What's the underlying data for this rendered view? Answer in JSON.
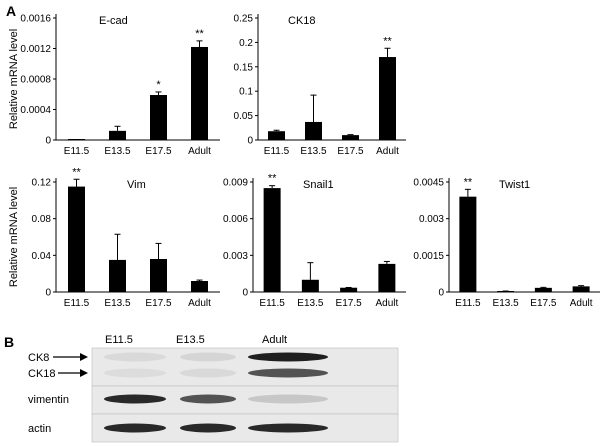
{
  "panel_labels": {
    "a": "A",
    "b": "B"
  },
  "chart_data": [
    {
      "type": "bar",
      "title": "E-cad",
      "ylabel": "Relative mRNA level",
      "categories": [
        "E11.5",
        "E13.5",
        "E17.5",
        "Adult"
      ],
      "values": [
        1e-05,
        0.00012,
        0.00059,
        0.00122
      ],
      "errors": [
        0,
        6e-05,
        4e-05,
        8e-05
      ],
      "significance": [
        "",
        "",
        "*",
        "**"
      ],
      "ylim": [
        0,
        0.0016
      ],
      "yticks": [
        0,
        0.0004,
        0.0008,
        0.0012,
        0.0016
      ],
      "yticklabels": [
        "0",
        "0.0004",
        "0.0008",
        "0.0012",
        "0.0016"
      ]
    },
    {
      "type": "bar",
      "title": "CK18",
      "ylabel": "",
      "categories": [
        "E11.5",
        "E13.5",
        "E17.5",
        "Adult"
      ],
      "values": [
        0.018,
        0.037,
        0.01,
        0.17
      ],
      "errors": [
        0.002,
        0.055,
        0.001,
        0.018
      ],
      "significance": [
        "",
        "",
        "",
        "**"
      ],
      "ylim": [
        0,
        0.25
      ],
      "yticks": [
        0,
        0.05,
        0.1,
        0.15,
        0.2,
        0.25
      ],
      "yticklabels": [
        "0",
        "0.05",
        "0.1",
        "0.15",
        "0.2",
        "0.25"
      ]
    },
    {
      "type": "bar",
      "title": "Vim",
      "ylabel": "Relative mRNA level",
      "categories": [
        "E11.5",
        "E13.5",
        "E17.5",
        "Adult"
      ],
      "values": [
        0.115,
        0.035,
        0.036,
        0.012
      ],
      "errors": [
        0.008,
        0.028,
        0.017,
        0.001
      ],
      "significance": [
        "**",
        "",
        "",
        ""
      ],
      "ylim": [
        0,
        0.12
      ],
      "yticks": [
        0,
        0.04,
        0.08,
        0.12
      ],
      "yticklabels": [
        "0",
        "0.04",
        "0.08",
        "0.12"
      ]
    },
    {
      "type": "bar",
      "title": "Snail1",
      "ylabel": "",
      "categories": [
        "E11.5",
        "E13.5",
        "E17.5",
        "Adult"
      ],
      "values": [
        0.0085,
        0.001,
        0.00035,
        0.0023
      ],
      "errors": [
        0.0002,
        0.0014,
        2e-05,
        0.0002
      ],
      "significance": [
        "**",
        "",
        "",
        ""
      ],
      "ylim": [
        0,
        0.009
      ],
      "yticks": [
        0,
        0.003,
        0.006,
        0.009
      ],
      "yticklabels": [
        "0",
        "0.003",
        "0.006",
        "0.009"
      ]
    },
    {
      "type": "bar",
      "title": "Twist1",
      "ylabel": "",
      "categories": [
        "E11.5",
        "E13.5",
        "E17.5",
        "Adult"
      ],
      "values": [
        0.0039,
        3e-05,
        0.00017,
        0.00023
      ],
      "errors": [
        0.0003,
        1e-05,
        2e-05,
        3e-05
      ],
      "significance": [
        "**",
        "",
        "",
        ""
      ],
      "ylim": [
        0,
        0.0045
      ],
      "yticks": [
        0,
        0.0015,
        0.003,
        0.0045
      ],
      "yticklabels": [
        "0",
        "0.0015",
        "0.003",
        "0.0045"
      ]
    }
  ],
  "western_blot": {
    "lanes": [
      "E11.5",
      "E13.5",
      "Adult"
    ],
    "rows": [
      {
        "label": "CK8",
        "arrow": true,
        "intensities": [
          0.06,
          0.08,
          0.95
        ]
      },
      {
        "label": "CK18",
        "arrow": true,
        "intensities": [
          0.05,
          0.06,
          0.7
        ]
      },
      {
        "label": "vimentin",
        "arrow": false,
        "intensities": [
          0.9,
          0.7,
          0.15
        ]
      },
      {
        "label": "actin",
        "arrow": false,
        "intensities": [
          0.9,
          0.9,
          0.9
        ]
      }
    ]
  }
}
